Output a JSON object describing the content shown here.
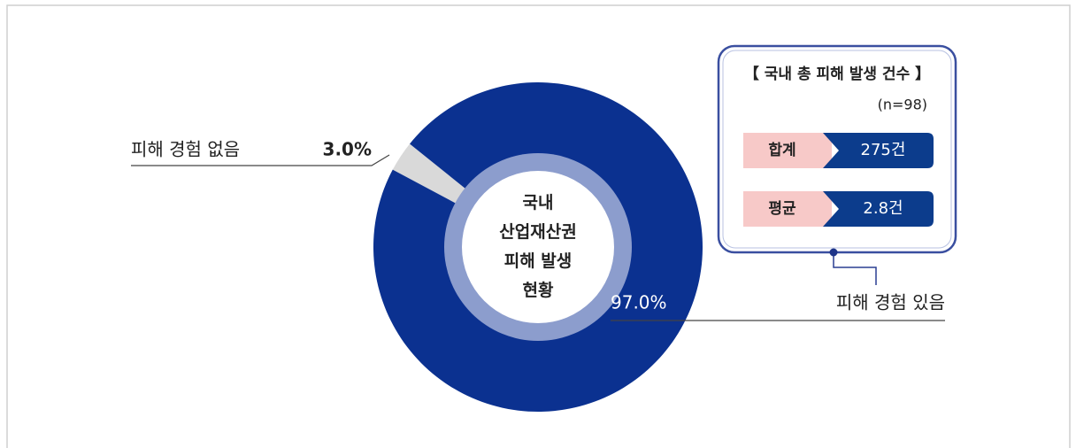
{
  "chart_data": {
    "type": "pie",
    "categories": [
      "피해 경험 없음",
      "피해 경험 있음"
    ],
    "values": [
      3.0,
      97.0
    ],
    "value_labels": [
      "3.0%",
      "97.0%"
    ],
    "colors": [
      "#d9d9d9",
      "#0b3190"
    ],
    "center_label": [
      "국내",
      "산업재산권",
      "피해 발생",
      "현황"
    ],
    "info_box": {
      "title": "【 국내 총 피해 발생 건수 】",
      "note": "(n=98)",
      "rows": [
        {
          "label": "합계",
          "value": "275건"
        },
        {
          "label": "평균",
          "value": "2.8건"
        }
      ]
    }
  }
}
